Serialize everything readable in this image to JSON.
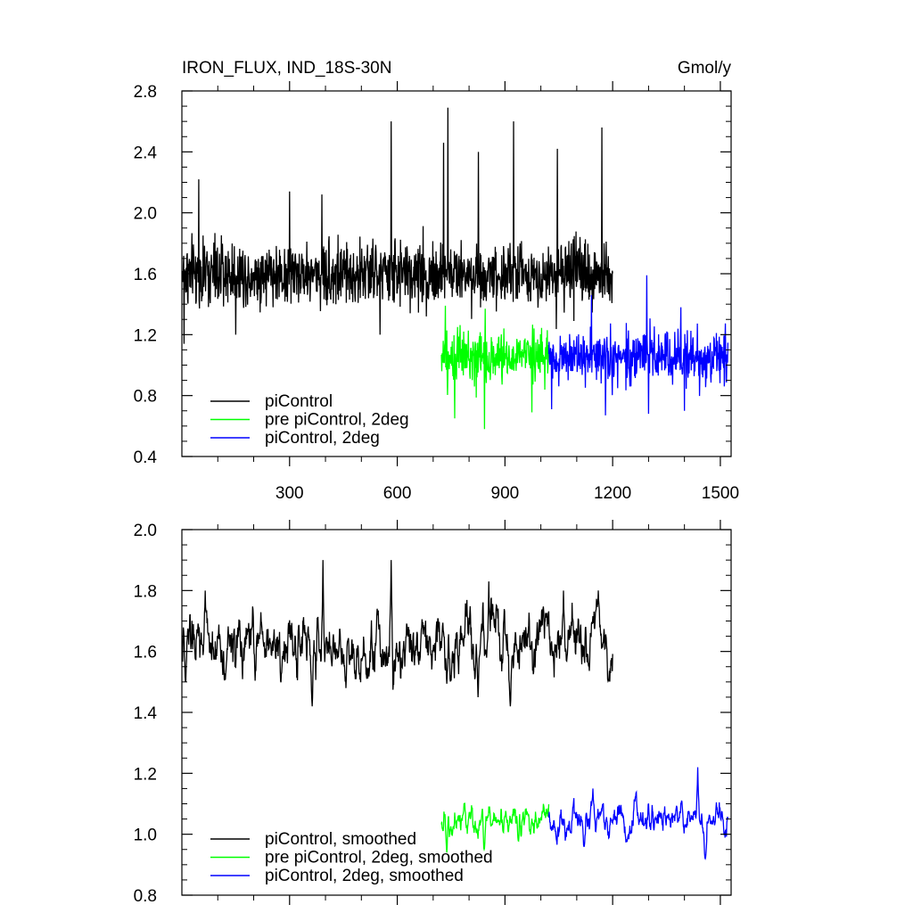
{
  "header": {
    "title": "IRON_FLUX, IND_18S-30N",
    "units": "Gmol/y"
  },
  "chart_data": [
    {
      "type": "line",
      "title": "IRON_FLUX, IND_18S-30N",
      "units": "Gmol/y",
      "xlim": [
        0,
        1530
      ],
      "ylim": [
        0.4,
        2.8
      ],
      "xticks": [
        300,
        600,
        900,
        1200,
        1500
      ],
      "xtick_labels": [
        "300",
        "600",
        "900",
        "1200",
        "1500"
      ],
      "yticks": [
        0.4,
        0.8,
        1.2,
        1.6,
        2.0,
        2.4,
        2.8
      ],
      "ytick_labels": [
        "0.4",
        "0.8",
        "1.2",
        "1.6",
        "2.0",
        "2.4",
        "2.8"
      ],
      "grid": false,
      "legend_position": "bottom-left",
      "series": [
        {
          "name": "piControl",
          "color": "#000000",
          "x_start": 1,
          "x_end": 1200,
          "mean": 1.6,
          "noise": 0.15,
          "min": 1.14,
          "max": 2.7,
          "peaks": [
            [
              47,
              2.22
            ],
            [
              300,
              2.14
            ],
            [
              390,
              2.12
            ],
            [
              583,
              2.6
            ],
            [
              729,
              2.46
            ],
            [
              741,
              2.69
            ],
            [
              826,
              2.4
            ],
            [
              924,
              2.6
            ],
            [
              1046,
              2.42
            ],
            [
              1170,
              2.56
            ]
          ],
          "troughs": [
            [
              6,
              1.14
            ],
            [
              150,
              1.2
            ],
            [
              552,
              1.2
            ],
            [
              1092,
              1.29
            ]
          ]
        },
        {
          "name": "pre piControl, 2deg",
          "color": "#00ff00",
          "x_start": 723,
          "x_end": 1022,
          "mean": 1.05,
          "noise": 0.12,
          "min": 0.58,
          "max": 1.4,
          "peaks": [
            [
              734,
              1.39
            ],
            [
              845,
              1.37
            ]
          ],
          "troughs": [
            [
              760,
              0.65
            ],
            [
              843,
              0.58
            ],
            [
              975,
              0.69
            ]
          ]
        },
        {
          "name": "piControl, 2deg",
          "color": "#0000ff",
          "x_start": 1022,
          "x_end": 1521,
          "mean": 1.05,
          "noise": 0.12,
          "min": 0.67,
          "max": 1.59,
          "peaks": [
            [
              1295,
              1.59
            ],
            [
              1141,
              1.46
            ],
            [
              1390,
              1.38
            ]
          ],
          "troughs": [
            [
              1030,
              0.71
            ],
            [
              1180,
              0.67
            ],
            [
              1300,
              0.68
            ],
            [
              1400,
              0.7
            ]
          ]
        }
      ]
    },
    {
      "type": "line",
      "xlim": [
        0,
        1530
      ],
      "ylim": [
        0.8,
        2.0
      ],
      "xticks": [
        300,
        600,
        900,
        1200,
        1500
      ],
      "xtick_labels": [],
      "yticks": [
        0.8,
        1.0,
        1.2,
        1.4,
        1.6,
        1.8,
        2.0
      ],
      "ytick_labels": [
        "0.8",
        "1.0",
        "1.2",
        "1.4",
        "1.6",
        "1.8",
        "2.0"
      ],
      "grid": false,
      "legend_position": "bottom-left",
      "series": [
        {
          "name": "piControl, smoothed",
          "color": "#000000",
          "x_start": 1,
          "x_end": 1200,
          "mean": 1.62,
          "noise": 0.08,
          "min": 1.42,
          "max": 1.9,
          "peaks": [
            [
              65,
              1.8
            ],
            [
              393,
              1.9
            ],
            [
              583,
              1.9
            ],
            [
              855,
              1.83
            ],
            [
              1063,
              1.8
            ],
            [
              1160,
              1.8
            ]
          ],
          "troughs": [
            [
              10,
              1.5
            ],
            [
              363,
              1.42
            ],
            [
              825,
              1.45
            ],
            [
              915,
              1.42
            ]
          ]
        },
        {
          "name": "pre piControl, 2deg, smoothed",
          "color": "#00ff00",
          "x_start": 723,
          "x_end": 1022,
          "mean": 1.05,
          "noise": 0.04,
          "min": 0.94,
          "max": 1.14,
          "peaks": [
            [
              740,
              1.14
            ]
          ],
          "troughs": [
            [
              738,
              0.94
            ],
            [
              842,
              0.95
            ]
          ]
        },
        {
          "name": "piControl, 2deg, smoothed",
          "color": "#0000ff",
          "x_start": 1022,
          "x_end": 1521,
          "mean": 1.05,
          "noise": 0.04,
          "min": 0.92,
          "max": 1.22,
          "peaks": [
            [
              1437,
              1.22
            ],
            [
              1145,
              1.15
            ]
          ],
          "troughs": [
            [
              1120,
              0.96
            ],
            [
              1458,
              0.92
            ]
          ]
        }
      ]
    }
  ]
}
